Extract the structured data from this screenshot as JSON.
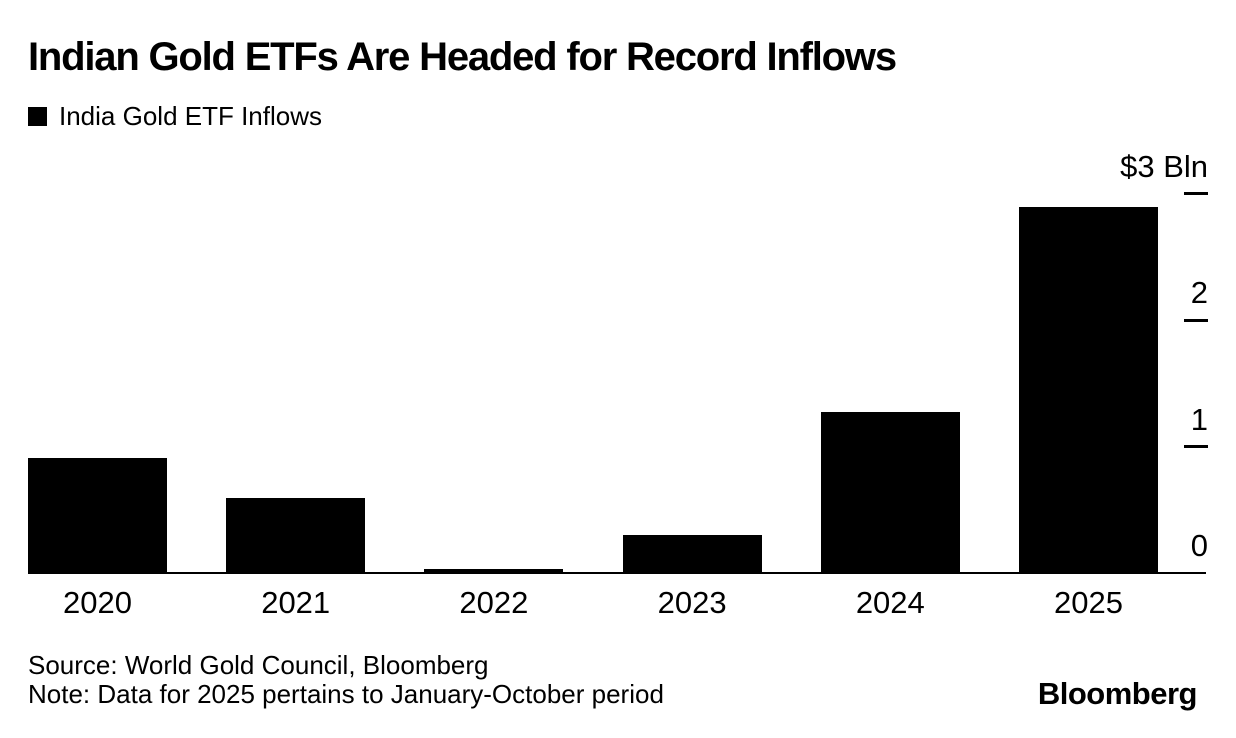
{
  "header": {
    "title": "Indian Gold ETFs Are Headed for Record Inflows"
  },
  "chart_data": {
    "type": "bar",
    "title": "Indian Gold ETFs Are Headed for Record Inflows",
    "legend": {
      "label": "India Gold ETF Inflows",
      "swatch_color": "#000000",
      "position": "top-left"
    },
    "categories": [
      "2020",
      "2021",
      "2022",
      "2023",
      "2024",
      "2025"
    ],
    "values": [
      0.91,
      0.59,
      0.03,
      0.3,
      1.27,
      2.89
    ],
    "unit": "USD billions",
    "bar_color": "#000000",
    "xlabel": "",
    "ylabel": "",
    "ylim": [
      0,
      3
    ],
    "grid": false,
    "y_axis": {
      "side": "right",
      "ticks": [
        {
          "value": 3,
          "label": "$3 Bln"
        },
        {
          "value": 2,
          "label": "2"
        },
        {
          "value": 1,
          "label": "1"
        },
        {
          "value": 0,
          "label": "0"
        }
      ]
    }
  },
  "footer": {
    "source": "Source: World Gold Council, Bloomberg",
    "note": "Note: Data for 2025 pertains to January-October period",
    "brand": "Bloomberg"
  }
}
